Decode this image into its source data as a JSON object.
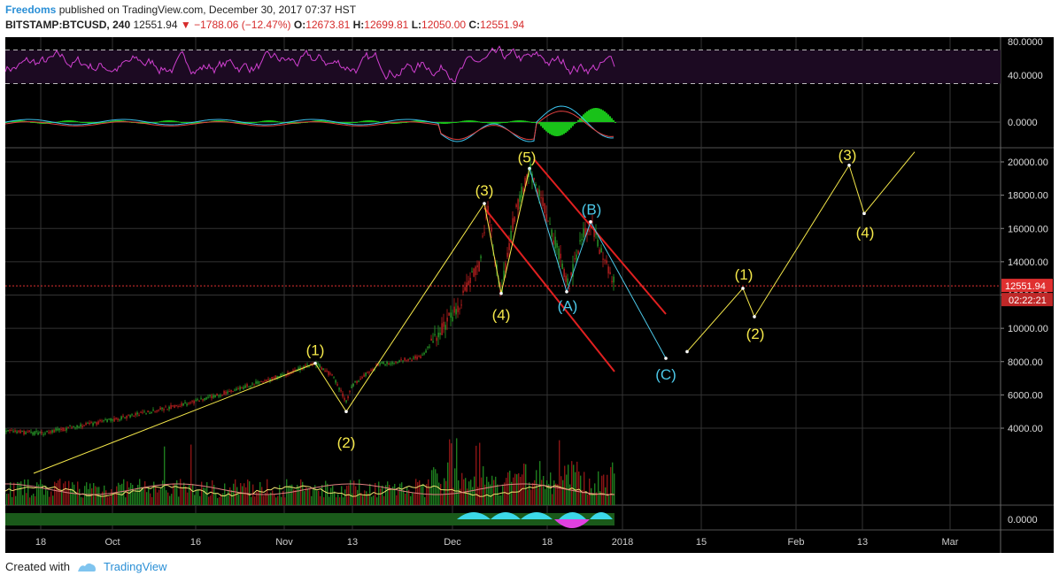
{
  "header": {
    "author": "Freedoms",
    "published_text": "published on TradingView.com, December 30, 2017 07:37 HST"
  },
  "ohlc": {
    "symbol": "BITSTAMP:BTCUSD, 240",
    "last": "12551.94",
    "change": "▼ −1788.06 (−12.47%)",
    "o_label": "O:",
    "o_value": "12673.81",
    "h_label": "H:",
    "h_value": "12699.81",
    "l_label": "L:",
    "l_value": "12050.00",
    "c_label": "C:",
    "c_value": "12551.94"
  },
  "footer": {
    "created_with": "Created with",
    "brand": "TradingView"
  },
  "chart_data": {
    "type": "line",
    "title": "",
    "symbol": "BITSTAMP:BTCUSD",
    "interval": "240",
    "price_axis": {
      "ticks": [
        "4000.00",
        "6000.00",
        "8000.00",
        "10000.00",
        "12000.00",
        "14000.00",
        "16000.00",
        "18000.00",
        "20000.00"
      ],
      "last_price_label": "12551.94",
      "countdown_label": "02:22:21",
      "last_price": 12551.94
    },
    "rsi_axis": {
      "ticks": [
        "40.0000",
        "80.0000"
      ],
      "upper_band": 70,
      "lower_band": 30
    },
    "macd_axis": {
      "ticks": [
        "0.0000"
      ]
    },
    "lower_axis": {
      "ticks": [
        "0.0000"
      ]
    },
    "time_axis": [
      "18",
      "Oct",
      "16",
      "Nov",
      "13",
      "Dec",
      "18",
      "2018",
      "15",
      "Feb",
      "13",
      "Mar"
    ],
    "wave_count_yellow": [
      {
        "label": "(1)",
        "price": 7900
      },
      {
        "label": "(2)",
        "price": 5000
      },
      {
        "label": "(3)",
        "price": 17500
      },
      {
        "label": "(4)",
        "price": 12100
      },
      {
        "label": "(5)",
        "price": 19600
      }
    ],
    "correction_cyan": [
      {
        "label": "(A)",
        "price": 12200
      },
      {
        "label": "(B)",
        "price": 16400
      },
      {
        "label": "(C)",
        "price": 8200
      }
    ],
    "projection_yellow": [
      {
        "label": "(1)",
        "price": 12400
      },
      {
        "label": "(2)",
        "price": 10700
      },
      {
        "label": "(3)",
        "price": 19800
      },
      {
        "label": "(4)",
        "price": 16900
      }
    ],
    "colors": {
      "background": "#000000",
      "wave_line": "#f5e84a",
      "correction_line": "#4cc8e8",
      "channel": "#e02020",
      "rsi": "#d040d0",
      "price_up": "#2aa02a",
      "price_down": "#c02020",
      "last_price_line": "#e03030"
    }
  }
}
